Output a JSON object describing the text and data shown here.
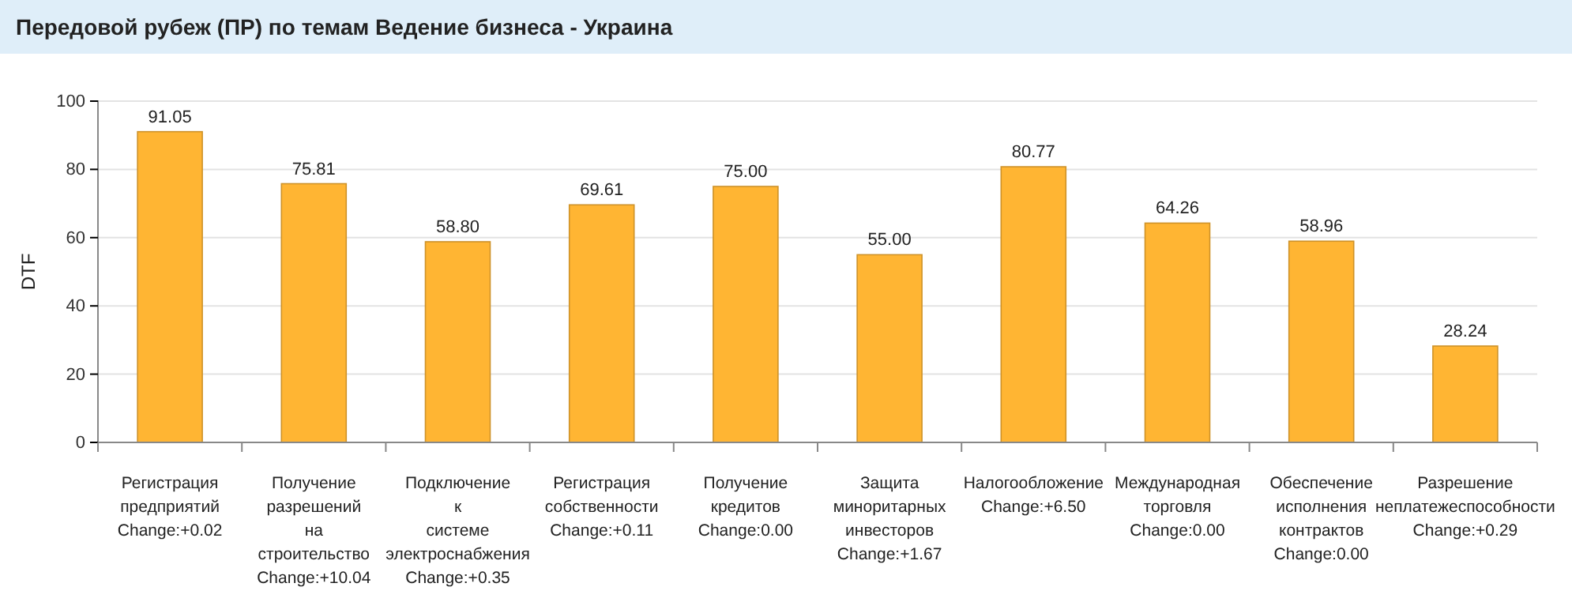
{
  "chart_data": {
    "type": "bar",
    "title": "Передовой рубеж (ПР) по темам Ведение бизнеса - Украина",
    "ylabel": "DTF",
    "categories": [
      "Регистрация\nпредприятий\nChange:+0.02",
      "Получение\nразрешений\nна\nстроительство\nChange:+10.04",
      "Подключение\nк\nсистеме\nэлектроснабжения\nChange:+0.35",
      "Регистрация\nсобственности\nChange:+0.11",
      "Получение\nкредитов\nChange:0.00",
      "Защита\nминоритарных\nинвесторов\nChange:+1.67",
      "Налогообложение\nChange:+6.50",
      "Международная\nторговля\nChange:0.00",
      "Обеспечение\nисполнения\nконтрактов\nChange:0.00",
      "Разрешение\nнеплатежеспособности\nChange:+0.29"
    ],
    "values": [
      91.05,
      75.81,
      58.8,
      69.61,
      75.0,
      55.0,
      80.77,
      64.26,
      58.96,
      28.24
    ],
    "value_labels": [
      "91.05",
      "75.81",
      "58.80",
      "69.61",
      "75.00",
      "55.00",
      "80.77",
      "64.26",
      "58.96",
      "28.24"
    ],
    "color": "#ffb533",
    "ylim": [
      0,
      100
    ],
    "yticks": [
      0,
      20,
      40,
      60,
      80,
      100
    ],
    "grid": "y"
  }
}
